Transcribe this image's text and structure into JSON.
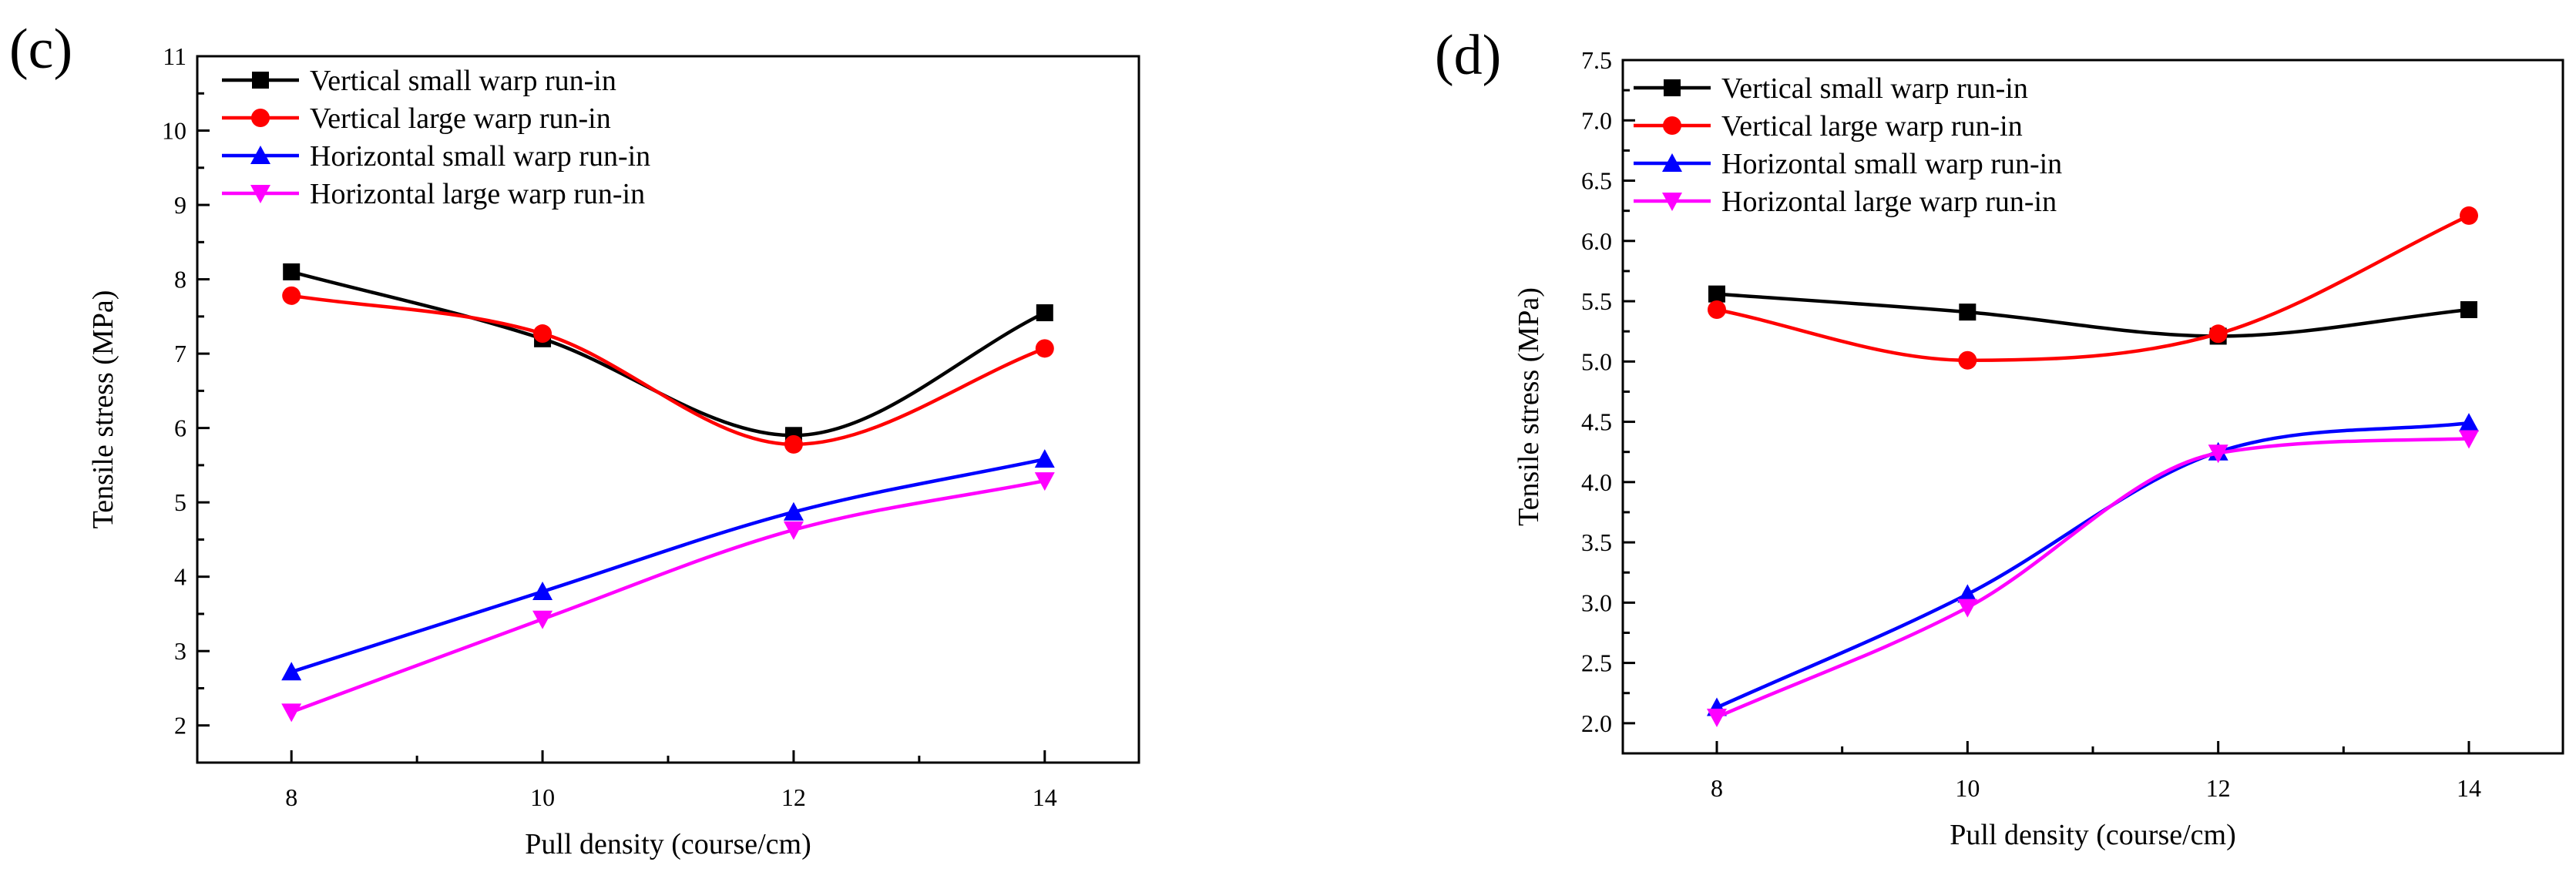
{
  "chart_data": [
    {
      "type": "line",
      "panel_label": "(c)",
      "xlabel": "Pull density (course/cm)",
      "ylabel": "Tensile stress (MPa)",
      "xlim": [
        7.25,
        14.75
      ],
      "ylim": [
        1.5,
        11
      ],
      "x": [
        8,
        10,
        12,
        14
      ],
      "xticks": [
        8,
        10,
        12,
        14
      ],
      "xtick_labels": [
        "8",
        "10",
        "12",
        "14"
      ],
      "yticks": [
        2,
        3,
        4,
        5,
        6,
        7,
        8,
        9,
        10,
        11
      ],
      "ytick_labels": [
        "2",
        "3",
        "4",
        "5",
        "6",
        "7",
        "8",
        "9",
        "10",
        "11"
      ],
      "legend_position": "top-left",
      "grid": false,
      "series": [
        {
          "name": "Vertical small warp run-in",
          "color": "#000000",
          "marker": "square",
          "values": [
            8.1,
            7.2,
            5.9,
            7.55
          ]
        },
        {
          "name": "Vertical large warp run-in",
          "color": "#ff0000",
          "marker": "circle",
          "values": [
            7.78,
            7.27,
            5.78,
            7.07
          ]
        },
        {
          "name": "Horizontal small warp run-in",
          "color": "#0000ff",
          "marker": "triangle-up",
          "values": [
            2.72,
            3.8,
            4.87,
            5.58
          ]
        },
        {
          "name": "Horizontal large warp run-in",
          "color": "#ff00ff",
          "marker": "triangle-down",
          "values": [
            2.18,
            3.43,
            4.63,
            5.29
          ]
        }
      ]
    },
    {
      "type": "line",
      "panel_label": "(d)",
      "xlabel": "Pull density (course/cm)",
      "ylabel": "Tensile stress (MPa)",
      "xlim": [
        7.25,
        14.75
      ],
      "ylim": [
        1.75,
        7.5
      ],
      "x": [
        8,
        10,
        12,
        14
      ],
      "xticks": [
        8,
        10,
        12,
        14
      ],
      "xtick_labels": [
        "8",
        "10",
        "12",
        "14"
      ],
      "yticks": [
        2.0,
        2.5,
        3.0,
        3.5,
        4.0,
        4.5,
        5.0,
        5.5,
        6.0,
        6.5,
        7.0,
        7.5
      ],
      "ytick_labels": [
        "2.0",
        "2.5",
        "3.0",
        "3.5",
        "4.0",
        "4.5",
        "5.0",
        "5.5",
        "6.0",
        "6.5",
        "7.0",
        "7.5"
      ],
      "legend_position": "top-left",
      "grid": false,
      "series": [
        {
          "name": "Vertical small warp run-in",
          "color": "#000000",
          "marker": "square",
          "values": [
            5.56,
            5.41,
            5.21,
            5.43
          ]
        },
        {
          "name": "Vertical large warp run-in",
          "color": "#ff0000",
          "marker": "circle",
          "values": [
            5.43,
            5.01,
            5.23,
            6.21
          ]
        },
        {
          "name": "Horizontal small warp run-in",
          "color": "#0000ff",
          "marker": "triangle-up",
          "values": [
            2.13,
            3.07,
            4.25,
            4.49
          ]
        },
        {
          "name": "Horizontal large warp run-in",
          "color": "#ff00ff",
          "marker": "triangle-down",
          "values": [
            2.05,
            2.96,
            4.24,
            4.36
          ]
        }
      ]
    }
  ]
}
